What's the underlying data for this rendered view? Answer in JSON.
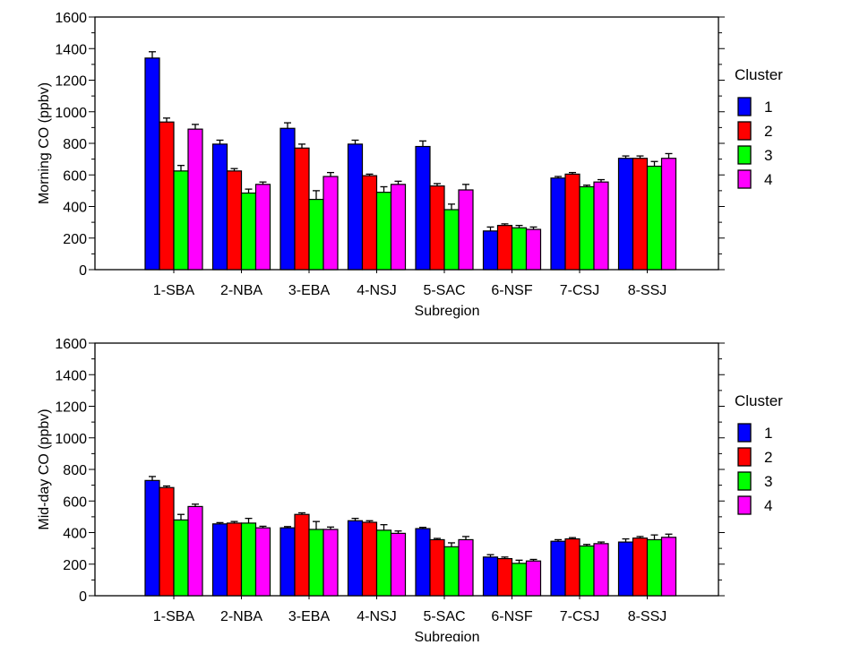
{
  "chart_data": [
    {
      "type": "bar",
      "ylabel": "Morning CO (ppbv)",
      "xlabel": "Subregion",
      "ylim": [
        0,
        1600
      ],
      "y_ticks": [
        0,
        200,
        400,
        600,
        800,
        1000,
        1200,
        1400,
        1600
      ],
      "categories": [
        "1-SBA",
        "2-NBA",
        "3-EBA",
        "4-NSJ",
        "5-SAC",
        "6-NSF",
        "7-CSJ",
        "8-SSJ"
      ],
      "legend_title": "Cluster",
      "legend_position": "right",
      "error_bars": true,
      "series": [
        {
          "name": "1",
          "color": "#0000ff",
          "values": [
            1340,
            795,
            895,
            795,
            780,
            245,
            580,
            705
          ],
          "errors": [
            40,
            25,
            35,
            25,
            35,
            25,
            10,
            15
          ]
        },
        {
          "name": "2",
          "color": "#ff0000",
          "values": [
            935,
            625,
            770,
            595,
            530,
            280,
            605,
            705
          ],
          "errors": [
            25,
            15,
            25,
            10,
            15,
            10,
            10,
            15
          ]
        },
        {
          "name": "3",
          "color": "#00ff00",
          "values": [
            625,
            485,
            445,
            490,
            380,
            265,
            525,
            655
          ],
          "errors": [
            35,
            25,
            55,
            35,
            35,
            15,
            10,
            30
          ]
        },
        {
          "name": "4",
          "color": "#ff00ff",
          "values": [
            890,
            540,
            590,
            540,
            505,
            255,
            555,
            705
          ],
          "errors": [
            30,
            15,
            25,
            20,
            35,
            15,
            15,
            30
          ]
        }
      ]
    },
    {
      "type": "bar",
      "ylabel": "Mid-day CO (ppbv)",
      "xlabel": "Subregion",
      "ylim": [
        0,
        1600
      ],
      "y_ticks": [
        0,
        200,
        400,
        600,
        800,
        1000,
        1200,
        1400,
        1600
      ],
      "categories": [
        "1-SBA",
        "2-NBA",
        "3-EBA",
        "4-NSJ",
        "5-SAC",
        "6-NSF",
        "7-CSJ",
        "8-SSJ"
      ],
      "legend_title": "Cluster",
      "legend_position": "right",
      "error_bars": true,
      "series": [
        {
          "name": "1",
          "color": "#0000ff",
          "values": [
            730,
            455,
            430,
            475,
            425,
            245,
            345,
            340
          ],
          "errors": [
            25,
            8,
            8,
            15,
            8,
            15,
            10,
            20
          ]
        },
        {
          "name": "2",
          "color": "#ff0000",
          "values": [
            685,
            460,
            515,
            465,
            355,
            235,
            360,
            365
          ],
          "errors": [
            10,
            10,
            10,
            10,
            8,
            10,
            8,
            10
          ]
        },
        {
          "name": "3",
          "color": "#00ff00",
          "values": [
            480,
            460,
            420,
            415,
            310,
            205,
            315,
            355
          ],
          "errors": [
            35,
            30,
            50,
            35,
            25,
            20,
            10,
            30
          ]
        },
        {
          "name": "4",
          "color": "#ff00ff",
          "values": [
            565,
            430,
            420,
            395,
            355,
            220,
            330,
            370
          ],
          "errors": [
            15,
            10,
            15,
            15,
            20,
            10,
            10,
            20
          ]
        }
      ]
    }
  ]
}
